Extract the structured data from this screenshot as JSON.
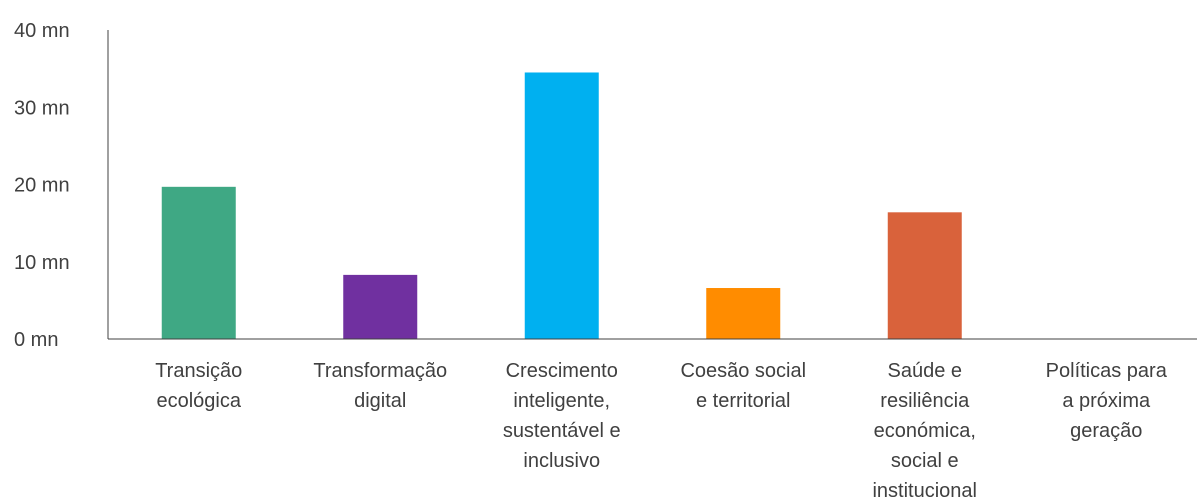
{
  "chart_data": {
    "type": "bar",
    "categories": [
      [
        "Transição",
        "ecológica"
      ],
      [
        "Transformação",
        "digital"
      ],
      [
        "Crescimento",
        "inteligente,",
        "sustentável e",
        "inclusivo"
      ],
      [
        "Coesão social",
        "e territorial"
      ],
      [
        "Saúde e",
        "resiliência",
        "económica,",
        "social e",
        "institucional"
      ],
      [
        "Políticas para",
        "a próxima",
        "geração"
      ]
    ],
    "values": [
      19.7,
      8.3,
      34.5,
      6.6,
      16.4,
      0
    ],
    "colors": [
      "#3fa884",
      "#7030a0",
      "#00b0f0",
      "#ff8c00",
      "#d9623b",
      "#999999"
    ],
    "yticks": [
      0,
      10,
      20,
      30,
      40
    ],
    "ytick_labels": [
      "0 mn",
      "10 mn",
      "20 mn",
      "30 mn",
      "40 mn"
    ],
    "ylim": [
      0,
      40
    ],
    "title": "",
    "xlabel": "",
    "ylabel": "",
    "grid": false,
    "legend": "none"
  }
}
